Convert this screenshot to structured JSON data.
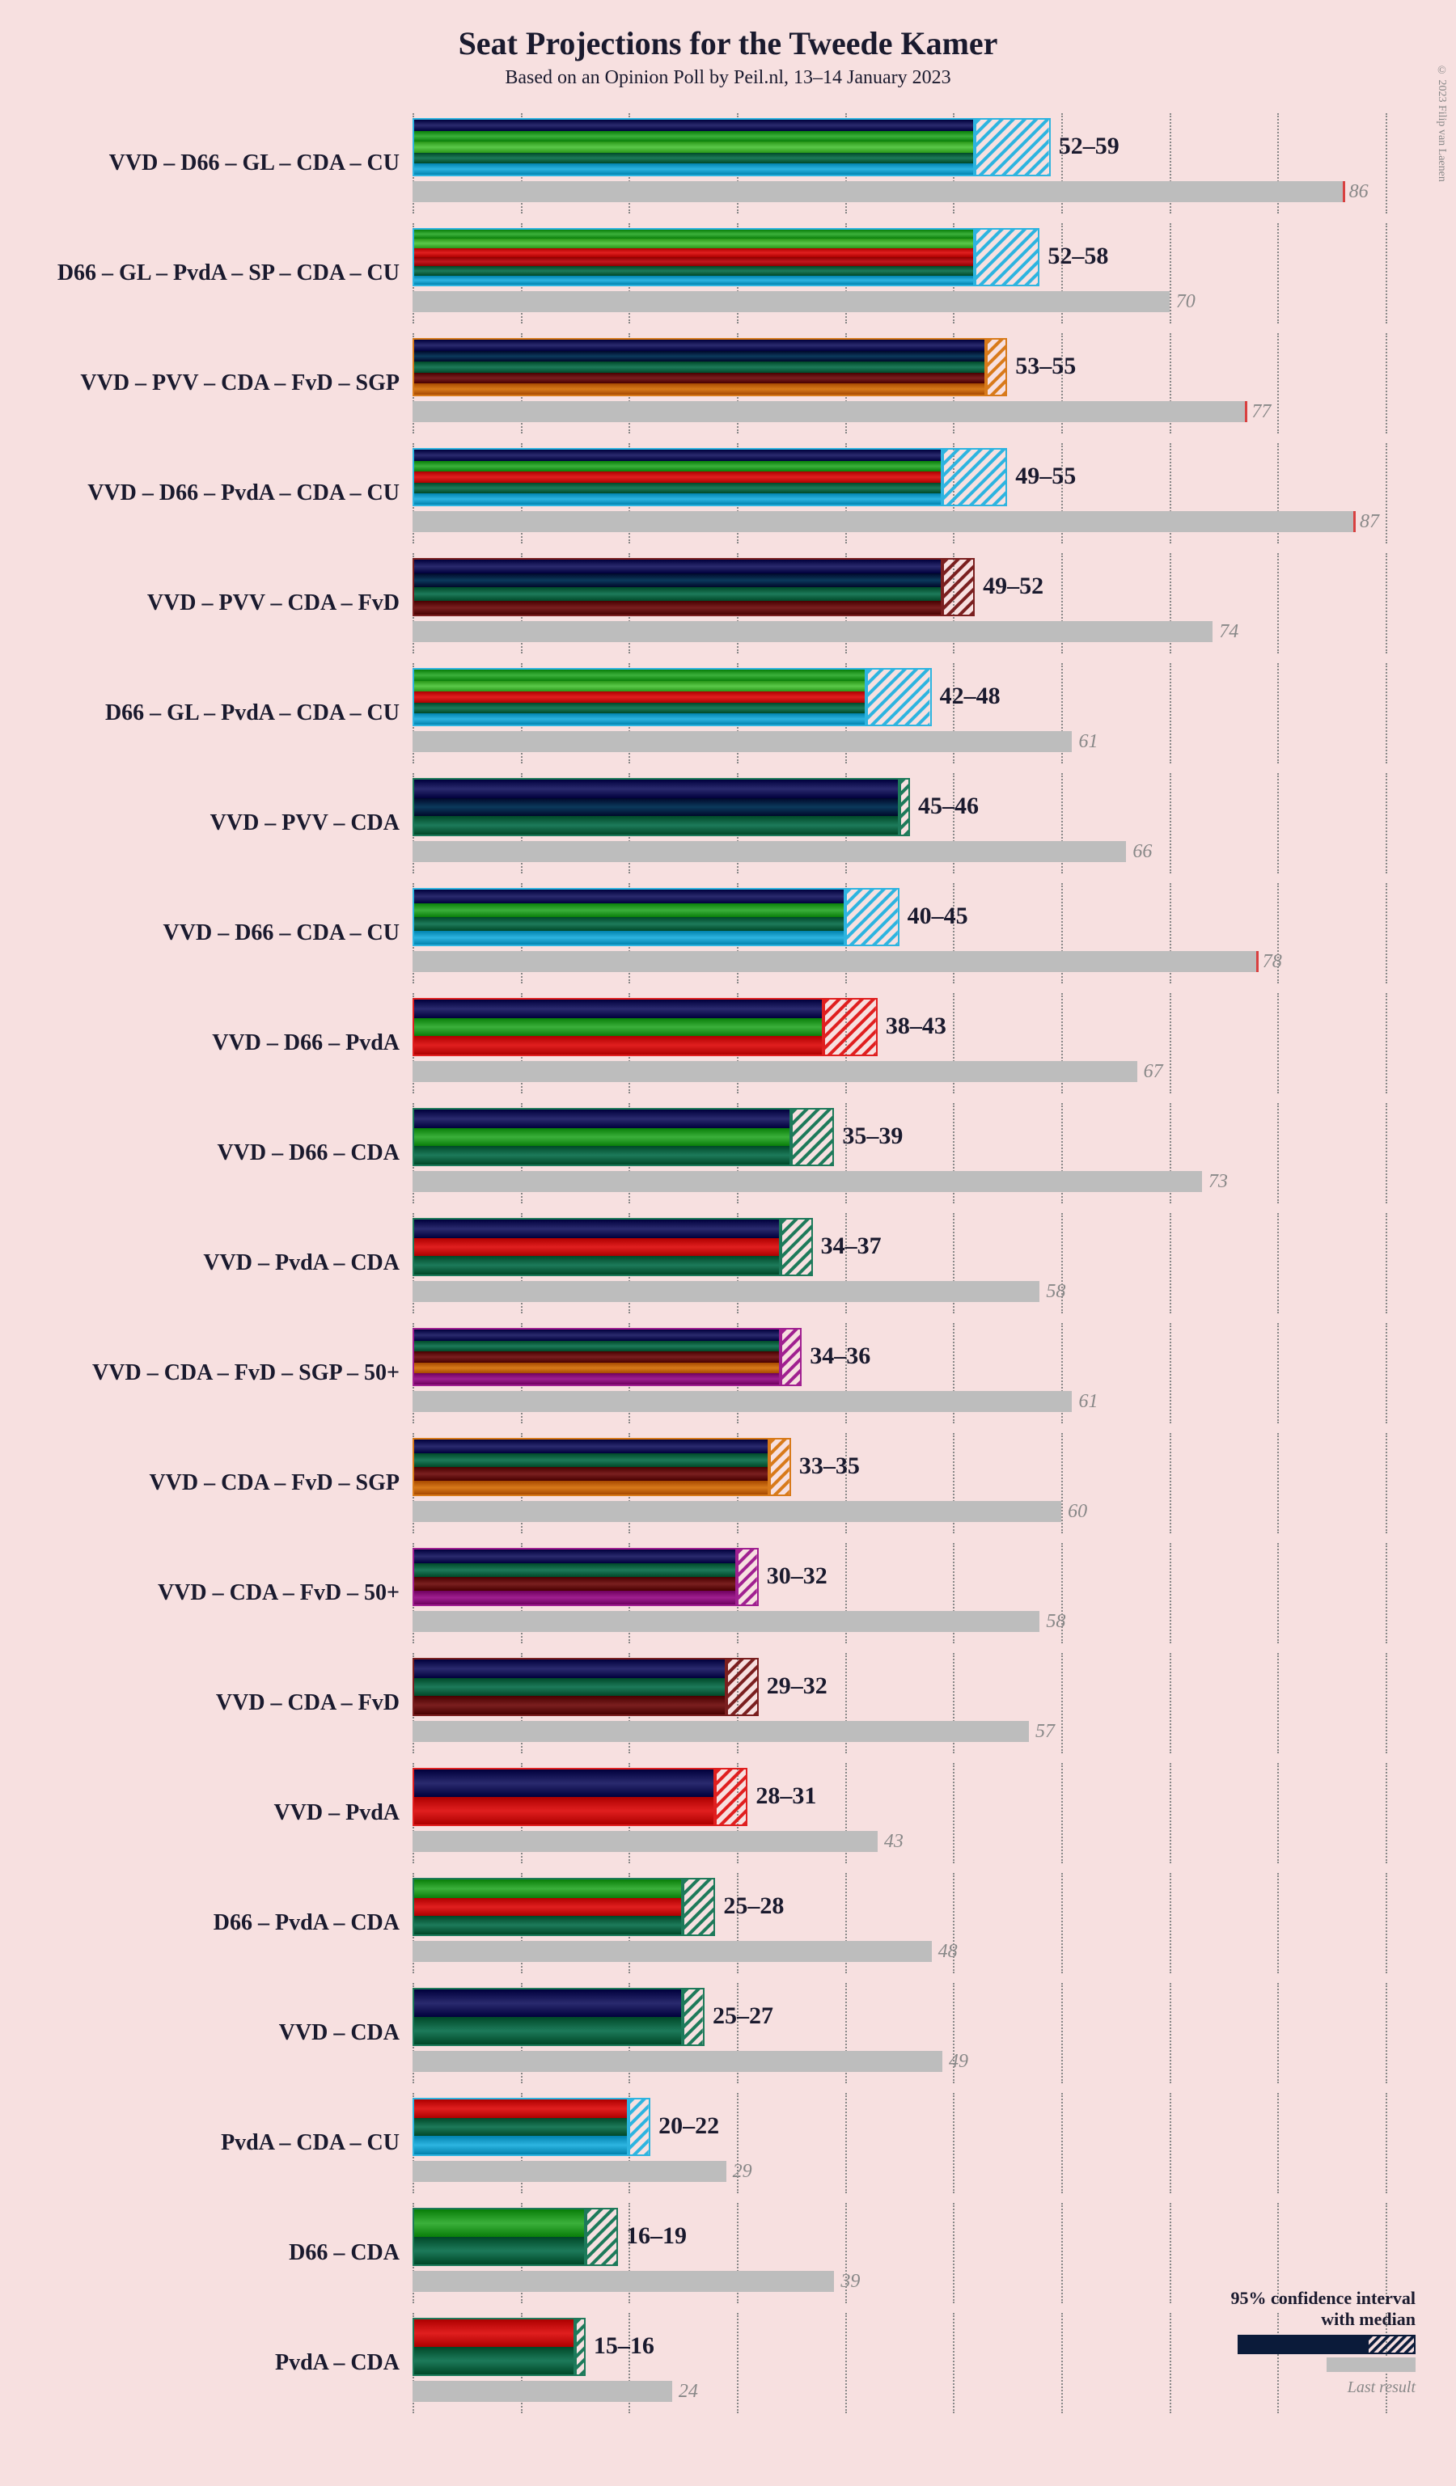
{
  "title": "Seat Projections for the Tweede Kamer",
  "subtitle": "Based on an Opinion Poll by Peil.nl, 13–14 January 2023",
  "copyright": "© 2023 Filip van Laenen",
  "background_color": "#f7e0e0",
  "text_color": "#1a1a2e",
  "grid_color": "#888888",
  "ref_bar_color": "#bdbdbd",
  "red_tick_color": "#d84040",
  "scale_max": 95,
  "grid_step": 10,
  "party_colors": {
    "VVD": "#2a2a6e",
    "D66": "#3bb03b",
    "GL": "#5bc94a",
    "CDA": "#1d7a5a",
    "CU": "#2db4e0",
    "PvdA": "#e01f1f",
    "SP": "#c0181f",
    "PVV": "#0b3a5c",
    "FvD": "#7a1f1f",
    "SGP": "#d87a1a",
    "50+": "#a02090"
  },
  "legend": {
    "line1": "95% confidence interval",
    "line2": "with median",
    "last": "Last result"
  },
  "rows": [
    {
      "label": "VVD – D66 – GL – CDA – CU",
      "parties": [
        "VVD",
        "D66",
        "GL",
        "CDA",
        "CU"
      ],
      "lo": 52,
      "hi": 59,
      "ref": 86,
      "red": 86
    },
    {
      "label": "D66 – GL – PvdA – SP – CDA – CU",
      "parties": [
        "D66",
        "GL",
        "PvdA",
        "SP",
        "CDA",
        "CU"
      ],
      "lo": 52,
      "hi": 58,
      "ref": 70,
      "red": null
    },
    {
      "label": "VVD – PVV – CDA – FvD – SGP",
      "parties": [
        "VVD",
        "PVV",
        "CDA",
        "FvD",
        "SGP"
      ],
      "lo": 53,
      "hi": 55,
      "ref": 77,
      "red": 77
    },
    {
      "label": "VVD – D66 – PvdA – CDA – CU",
      "parties": [
        "VVD",
        "D66",
        "PvdA",
        "CDA",
        "CU"
      ],
      "lo": 49,
      "hi": 55,
      "ref": 87,
      "red": 87
    },
    {
      "label": "VVD – PVV – CDA – FvD",
      "parties": [
        "VVD",
        "PVV",
        "CDA",
        "FvD"
      ],
      "lo": 49,
      "hi": 52,
      "ref": 74,
      "red": null
    },
    {
      "label": "D66 – GL – PvdA – CDA – CU",
      "parties": [
        "D66",
        "GL",
        "PvdA",
        "CDA",
        "CU"
      ],
      "lo": 42,
      "hi": 48,
      "ref": 61,
      "red": null
    },
    {
      "label": "VVD – PVV – CDA",
      "parties": [
        "VVD",
        "PVV",
        "CDA"
      ],
      "lo": 45,
      "hi": 46,
      "ref": 66,
      "red": null
    },
    {
      "label": "VVD – D66 – CDA – CU",
      "parties": [
        "VVD",
        "D66",
        "CDA",
        "CU"
      ],
      "lo": 40,
      "hi": 45,
      "ref": 78,
      "red": 78
    },
    {
      "label": "VVD – D66 – PvdA",
      "parties": [
        "VVD",
        "D66",
        "PvdA"
      ],
      "lo": 38,
      "hi": 43,
      "ref": 67,
      "red": null
    },
    {
      "label": "VVD – D66 – CDA",
      "parties": [
        "VVD",
        "D66",
        "CDA"
      ],
      "lo": 35,
      "hi": 39,
      "ref": 73,
      "red": null
    },
    {
      "label": "VVD – PvdA – CDA",
      "parties": [
        "VVD",
        "PvdA",
        "CDA"
      ],
      "lo": 34,
      "hi": 37,
      "ref": 58,
      "red": null
    },
    {
      "label": "VVD – CDA – FvD – SGP – 50+",
      "parties": [
        "VVD",
        "CDA",
        "FvD",
        "SGP",
        "50+"
      ],
      "lo": 34,
      "hi": 36,
      "ref": 61,
      "red": null
    },
    {
      "label": "VVD – CDA – FvD – SGP",
      "parties": [
        "VVD",
        "CDA",
        "FvD",
        "SGP"
      ],
      "lo": 33,
      "hi": 35,
      "ref": 60,
      "red": null
    },
    {
      "label": "VVD – CDA – FvD – 50+",
      "parties": [
        "VVD",
        "CDA",
        "FvD",
        "50+"
      ],
      "lo": 30,
      "hi": 32,
      "ref": 58,
      "red": null
    },
    {
      "label": "VVD – CDA – FvD",
      "parties": [
        "VVD",
        "CDA",
        "FvD"
      ],
      "lo": 29,
      "hi": 32,
      "ref": 57,
      "red": null
    },
    {
      "label": "VVD – PvdA",
      "parties": [
        "VVD",
        "PvdA"
      ],
      "lo": 28,
      "hi": 31,
      "ref": 43,
      "red": null
    },
    {
      "label": "D66 – PvdA – CDA",
      "parties": [
        "D66",
        "PvdA",
        "CDA"
      ],
      "lo": 25,
      "hi": 28,
      "ref": 48,
      "red": null
    },
    {
      "label": "VVD – CDA",
      "parties": [
        "VVD",
        "CDA"
      ],
      "lo": 25,
      "hi": 27,
      "ref": 49,
      "red": null
    },
    {
      "label": "PvdA – CDA – CU",
      "parties": [
        "PvdA",
        "CDA",
        "CU"
      ],
      "lo": 20,
      "hi": 22,
      "ref": 29,
      "red": null
    },
    {
      "label": "D66 – CDA",
      "parties": [
        "D66",
        "CDA"
      ],
      "lo": 16,
      "hi": 19,
      "ref": 39,
      "red": null
    },
    {
      "label": "PvdA – CDA",
      "parties": [
        "PvdA",
        "CDA"
      ],
      "lo": 15,
      "hi": 16,
      "ref": 24,
      "red": null
    }
  ]
}
